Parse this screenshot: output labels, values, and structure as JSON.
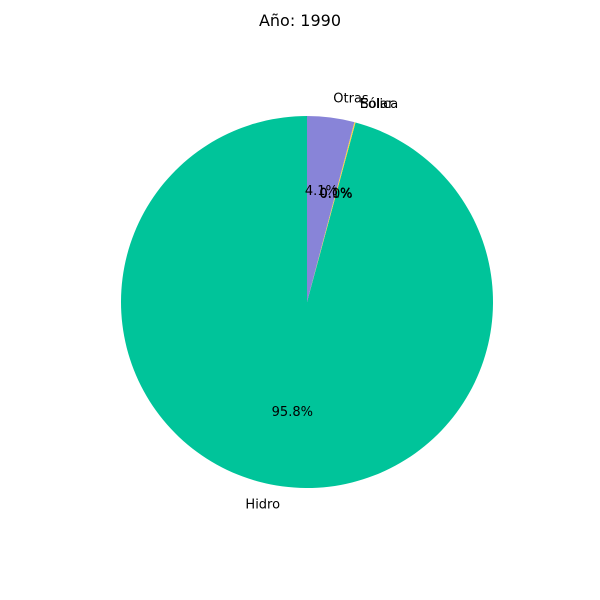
{
  "chart_data": {
    "type": "pie",
    "title": "Año: 1990",
    "start_angle_deg": 90,
    "direction": "counterclockwise",
    "slices": [
      {
        "label": "Hidro",
        "value": 95.8,
        "pct_label": "95.8%",
        "color": "#00c49a"
      },
      {
        "label": "Solar",
        "value": 0.0,
        "pct_label": "0.0%",
        "color": "#f8a5c2"
      },
      {
        "label": "Eólica",
        "value": 0.1,
        "pct_label": "0.1%",
        "color": "#ffd23f"
      },
      {
        "label": "Otras",
        "value": 4.1,
        "pct_label": "4.1%",
        "color": "#8884d8"
      }
    ]
  }
}
